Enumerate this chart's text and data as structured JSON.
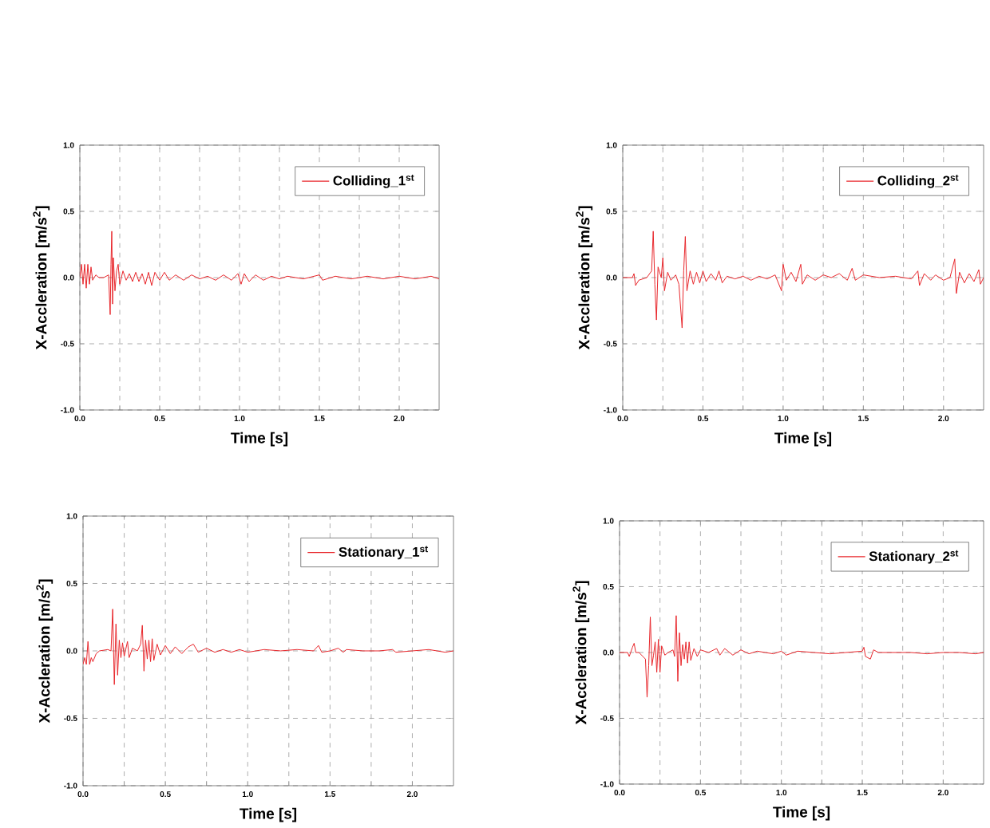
{
  "chart_data": [
    {
      "type": "line",
      "xlabel": "Time [s]",
      "ylabel": "X-Accleration [m/s$^{2}$]",
      "legend": "top right",
      "grid": true,
      "xlim": [
        0,
        2.25
      ],
      "ylim": [
        -1,
        1
      ],
      "xticks": [
        {
          "value": 0,
          "label": "0.0"
        },
        {
          "value": 0.25,
          "label": null
        },
        {
          "value": 0.5,
          "label": "0.5"
        },
        {
          "value": 0.75,
          "label": null
        },
        {
          "value": 1,
          "label": "1.0"
        },
        {
          "value": 1.25,
          "label": null
        },
        {
          "value": 1.5,
          "label": "1.5"
        },
        {
          "value": 1.75,
          "label": null
        },
        {
          "value": 2,
          "label": "2.0"
        }
      ],
      "yticks": [
        {
          "value": -1,
          "label": "-1.0"
        },
        {
          "value": -0.5,
          "label": "-0.5"
        },
        {
          "value": 0,
          "label": "0.0"
        },
        {
          "value": 0.5,
          "label": "0.5"
        },
        {
          "value": 1,
          "label": "1.0"
        }
      ],
      "series": [
        {
          "name": "Colliding_1$^{st}$",
          "color": "#e8262b",
          "x": [
            0.0,
            0.01,
            0.02,
            0.03,
            0.04,
            0.05,
            0.06,
            0.07,
            0.08,
            0.1,
            0.12,
            0.15,
            0.18,
            0.19,
            0.195,
            0.2,
            0.205,
            0.21,
            0.22,
            0.23,
            0.24,
            0.25,
            0.27,
            0.29,
            0.31,
            0.33,
            0.35,
            0.37,
            0.39,
            0.41,
            0.43,
            0.45,
            0.47,
            0.5,
            0.53,
            0.56,
            0.6,
            0.65,
            0.7,
            0.75,
            0.8,
            0.85,
            0.9,
            0.95,
            0.99,
            1.01,
            1.03,
            1.06,
            1.1,
            1.15,
            1.2,
            1.25,
            1.3,
            1.4,
            1.5,
            1.52,
            1.6,
            1.7,
            1.8,
            1.9,
            2.0,
            2.1,
            2.2,
            2.25
          ],
          "values": [
            0.0,
            0.1,
            -0.05,
            0.1,
            -0.08,
            0.1,
            -0.05,
            0.08,
            -0.02,
            0.02,
            0.0,
            0.0,
            0.02,
            -0.28,
            0.1,
            0.35,
            -0.2,
            0.15,
            -0.1,
            0.05,
            0.1,
            -0.05,
            0.05,
            -0.02,
            0.03,
            -0.03,
            0.04,
            -0.03,
            0.03,
            -0.05,
            0.04,
            -0.06,
            0.04,
            -0.02,
            0.04,
            -0.02,
            0.02,
            -0.02,
            0.02,
            -0.01,
            0.01,
            -0.02,
            0.02,
            -0.02,
            0.03,
            -0.05,
            0.03,
            -0.03,
            0.02,
            -0.02,
            0.01,
            -0.01,
            0.01,
            -0.01,
            0.02,
            -0.02,
            0.01,
            -0.01,
            0.01,
            -0.01,
            0.01,
            -0.01,
            0.01,
            -0.01
          ]
        }
      ]
    },
    {
      "type": "line",
      "xlabel": "Time [s]",
      "ylabel": "X-Accleration [m/s$^{2}$]",
      "legend": "top right",
      "grid": true,
      "xlim": [
        0,
        2.25
      ],
      "ylim": [
        -1,
        1
      ],
      "xticks": [
        {
          "value": 0,
          "label": "0.0"
        },
        {
          "value": 0.25,
          "label": null
        },
        {
          "value": 0.5,
          "label": "0.5"
        },
        {
          "value": 0.75,
          "label": null
        },
        {
          "value": 1,
          "label": "1.0"
        },
        {
          "value": 1.25,
          "label": null
        },
        {
          "value": 1.5,
          "label": "1.5"
        },
        {
          "value": 1.75,
          "label": null
        },
        {
          "value": 2,
          "label": "2.0"
        }
      ],
      "yticks": [
        {
          "value": -1,
          "label": "-1.0"
        },
        {
          "value": -0.5,
          "label": "-0.5"
        },
        {
          "value": 0,
          "label": "0.0"
        },
        {
          "value": 0.5,
          "label": "0.5"
        },
        {
          "value": 1,
          "label": "1.0"
        }
      ],
      "series": [
        {
          "name": "Colliding_2$^{st}$",
          "color": "#e8262b",
          "x": [
            0,
            0.06,
            0.07,
            0.08,
            0.1,
            0.15,
            0.18,
            0.19,
            0.2,
            0.21,
            0.22,
            0.24,
            0.25,
            0.26,
            0.28,
            0.3,
            0.33,
            0.35,
            0.37,
            0.38,
            0.39,
            0.4,
            0.42,
            0.44,
            0.46,
            0.48,
            0.5,
            0.52,
            0.55,
            0.58,
            0.6,
            0.62,
            0.65,
            0.7,
            0.75,
            0.8,
            0.85,
            0.9,
            0.95,
            0.99,
            1.0,
            1.02,
            1.05,
            1.08,
            1.11,
            1.12,
            1.15,
            1.2,
            1.25,
            1.3,
            1.35,
            1.4,
            1.43,
            1.45,
            1.5,
            1.6,
            1.7,
            1.8,
            1.84,
            1.85,
            1.88,
            1.92,
            1.95,
            2.0,
            2.04,
            2.07,
            2.08,
            2.1,
            2.13,
            2.16,
            2.19,
            2.22,
            2.23,
            2.25
          ],
          "values": [
            0,
            0.0,
            0.03,
            -0.06,
            -0.02,
            0.0,
            0.05,
            0.35,
            -0.05,
            -0.32,
            0.08,
            0.0,
            0.15,
            -0.1,
            0.04,
            -0.02,
            0.02,
            -0.05,
            -0.38,
            0.05,
            0.31,
            -0.1,
            0.05,
            -0.05,
            0.04,
            -0.04,
            0.05,
            -0.03,
            0.03,
            -0.02,
            0.05,
            -0.04,
            0.01,
            -0.01,
            0.01,
            -0.02,
            0.01,
            -0.01,
            0.02,
            -0.1,
            0.1,
            -0.02,
            0.04,
            -0.03,
            0.1,
            -0.05,
            0.02,
            -0.02,
            0.02,
            0.0,
            0.03,
            -0.02,
            0.07,
            -0.02,
            0.02,
            0.0,
            0.01,
            -0.01,
            0.05,
            -0.06,
            0.03,
            -0.02,
            0.02,
            -0.02,
            0.0,
            0.14,
            -0.12,
            0.04,
            -0.04,
            0.03,
            -0.03,
            0.06,
            -0.05,
            0.0
          ]
        }
      ]
    },
    {
      "type": "line",
      "xlabel": "Time [s]",
      "ylabel": "X-Accleration [m/s$^{2}$]",
      "legend": "top right",
      "grid": true,
      "xlim": [
        0,
        2.25
      ],
      "ylim": [
        -1,
        1
      ],
      "xticks": [
        {
          "value": 0,
          "label": "0.0"
        },
        {
          "value": 0.25,
          "label": null
        },
        {
          "value": 0.5,
          "label": "0.5"
        },
        {
          "value": 0.75,
          "label": null
        },
        {
          "value": 1,
          "label": "1.0"
        },
        {
          "value": 1.25,
          "label": null
        },
        {
          "value": 1.5,
          "label": "1.5"
        },
        {
          "value": 1.75,
          "label": null
        },
        {
          "value": 2,
          "label": "2.0"
        }
      ],
      "yticks": [
        {
          "value": -1,
          "label": "-1.0"
        },
        {
          "value": -0.5,
          "label": "-0.5"
        },
        {
          "value": 0,
          "label": "0.0"
        },
        {
          "value": 0.5,
          "label": "0.5"
        },
        {
          "value": 1,
          "label": "1.0"
        }
      ],
      "series": [
        {
          "name": "Stationary_1$^{st}$",
          "color": "#e8262b",
          "x": [
            0,
            0.01,
            0.02,
            0.03,
            0.04,
            0.05,
            0.06,
            0.08,
            0.1,
            0.15,
            0.17,
            0.18,
            0.19,
            0.2,
            0.21,
            0.22,
            0.23,
            0.24,
            0.25,
            0.27,
            0.28,
            0.3,
            0.33,
            0.35,
            0.36,
            0.37,
            0.38,
            0.39,
            0.4,
            0.41,
            0.42,
            0.43,
            0.45,
            0.47,
            0.5,
            0.53,
            0.56,
            0.6,
            0.64,
            0.67,
            0.7,
            0.75,
            0.8,
            0.85,
            0.9,
            0.95,
            1.0,
            1.1,
            1.2,
            1.3,
            1.4,
            1.43,
            1.45,
            1.5,
            1.55,
            1.58,
            1.6,
            1.7,
            1.8,
            1.88,
            1.9,
            2.0,
            2.1,
            2.2,
            2.25
          ],
          "values": [
            -0.1,
            -0.05,
            -0.1,
            0.07,
            -0.1,
            -0.05,
            -0.08,
            -0.02,
            0.0,
            0.01,
            0.0,
            0.31,
            -0.25,
            0.2,
            -0.18,
            0.08,
            -0.05,
            0.06,
            -0.04,
            0.07,
            -0.05,
            0.02,
            0.0,
            0.05,
            0.19,
            -0.15,
            0.08,
            -0.06,
            0.08,
            -0.08,
            0.09,
            -0.07,
            0.05,
            -0.03,
            0.04,
            -0.02,
            0.03,
            -0.02,
            0.03,
            0.05,
            -0.01,
            0.02,
            -0.01,
            0.01,
            -0.01,
            0.01,
            -0.01,
            0.01,
            0.0,
            0.01,
            0.0,
            0.04,
            -0.01,
            0.0,
            0.02,
            -0.01,
            0.01,
            0.0,
            0.0,
            0.01,
            -0.01,
            0.0,
            0.01,
            -0.01,
            0.0
          ]
        }
      ]
    },
    {
      "type": "line",
      "xlabel": "Time [s]",
      "ylabel": "X-Accleration [m/s$^{2}$]",
      "legend": "top right",
      "grid": true,
      "xlim": [
        0,
        2.25
      ],
      "ylim": [
        -1,
        1
      ],
      "xticks": [
        {
          "value": 0,
          "label": "0.0"
        },
        {
          "value": 0.25,
          "label": null
        },
        {
          "value": 0.5,
          "label": "0.5"
        },
        {
          "value": 0.75,
          "label": null
        },
        {
          "value": 1,
          "label": "1.0"
        },
        {
          "value": 1.25,
          "label": null
        },
        {
          "value": 1.5,
          "label": "1.5"
        },
        {
          "value": 1.75,
          "label": null
        },
        {
          "value": 2,
          "label": "2.0"
        }
      ],
      "yticks": [
        {
          "value": -1,
          "label": "-1.0"
        },
        {
          "value": -0.5,
          "label": "-0.5"
        },
        {
          "value": 0,
          "label": "0.0"
        },
        {
          "value": 0.5,
          "label": "0.5"
        },
        {
          "value": 1,
          "label": "1.0"
        }
      ],
      "series": [
        {
          "name": "Stationary_2$^{st}$",
          "color": "#e8262b",
          "x": [
            0,
            0.05,
            0.06,
            0.08,
            0.09,
            0.1,
            0.12,
            0.16,
            0.17,
            0.18,
            0.19,
            0.2,
            0.21,
            0.22,
            0.23,
            0.24,
            0.25,
            0.26,
            0.28,
            0.3,
            0.33,
            0.34,
            0.35,
            0.36,
            0.37,
            0.38,
            0.39,
            0.4,
            0.41,
            0.42,
            0.43,
            0.44,
            0.46,
            0.48,
            0.5,
            0.55,
            0.6,
            0.62,
            0.65,
            0.7,
            0.75,
            0.8,
            0.85,
            0.9,
            0.95,
            1.0,
            1.03,
            1.1,
            1.2,
            1.3,
            1.4,
            1.5,
            1.51,
            1.52,
            1.55,
            1.57,
            1.6,
            1.7,
            1.8,
            1.9,
            2.0,
            2.1,
            2.2,
            2.25
          ],
          "values": [
            0,
            0.0,
            -0.03,
            0.04,
            0.07,
            0.0,
            0.0,
            -0.05,
            -0.34,
            -0.1,
            0.27,
            -0.1,
            -0.02,
            0.08,
            -0.15,
            0.1,
            -0.15,
            0.05,
            -0.02,
            0.0,
            0.02,
            -0.03,
            0.28,
            -0.22,
            0.15,
            -0.1,
            0.06,
            -0.05,
            0.08,
            -0.08,
            0.08,
            -0.06,
            0.03,
            -0.03,
            0.02,
            0.0,
            0.03,
            -0.02,
            0.03,
            -0.02,
            0.02,
            -0.01,
            0.01,
            0.0,
            -0.01,
            0.01,
            -0.02,
            0.01,
            0.0,
            -0.01,
            0.0,
            0.01,
            0.04,
            -0.03,
            -0.05,
            0.02,
            0.0,
            0.0,
            0.0,
            -0.01,
            0.0,
            0.0,
            -0.01,
            0.0
          ]
        }
      ]
    }
  ]
}
